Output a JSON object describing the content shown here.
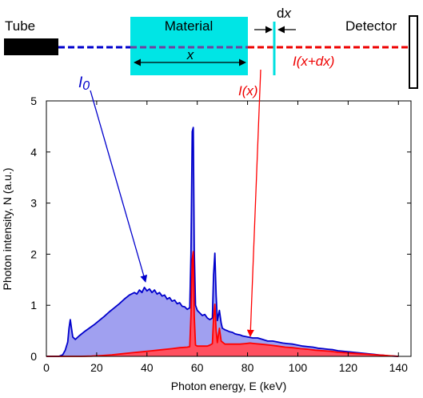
{
  "diagram": {
    "tube_label": "Tube",
    "material_label": "Material",
    "detector_label": "Detector",
    "thickness_label": "x",
    "dx_label_d": "d",
    "dx_label_x": "x",
    "i0_label_main": "I",
    "i0_label_sub": "0",
    "ix_label": "I(x)",
    "ixdx_label": "I(x+dx)"
  },
  "chart_data": {
    "type": "area",
    "xlabel": "Photon energy, E (keV)",
    "ylabel": "Photon intensity, N (a.u.)",
    "xlim": [
      0,
      145
    ],
    "ylim": [
      0,
      5
    ],
    "xticks": [
      0,
      20,
      40,
      60,
      80,
      100,
      120,
      140
    ],
    "yticks": [
      0,
      1,
      2,
      3,
      4,
      5
    ],
    "grid": false,
    "series": [
      {
        "name": "I0",
        "color": "#0000cc",
        "fill": "#a0a0f0",
        "points": [
          [
            0,
            0
          ],
          [
            5,
            0
          ],
          [
            6.5,
            0.03
          ],
          [
            7.5,
            0.12
          ],
          [
            8.5,
            0.28
          ],
          [
            9,
            0.55
          ],
          [
            9.5,
            0.72
          ],
          [
            10,
            0.55
          ],
          [
            10.5,
            0.38
          ],
          [
            11.5,
            0.33
          ],
          [
            13,
            0.4
          ],
          [
            15,
            0.48
          ],
          [
            17,
            0.55
          ],
          [
            19,
            0.62
          ],
          [
            21,
            0.7
          ],
          [
            23,
            0.78
          ],
          [
            25,
            0.87
          ],
          [
            27,
            0.95
          ],
          [
            29,
            1.03
          ],
          [
            31,
            1.12
          ],
          [
            33,
            1.2
          ],
          [
            35,
            1.25
          ],
          [
            36,
            1.22
          ],
          [
            37,
            1.3
          ],
          [
            38,
            1.25
          ],
          [
            39,
            1.35
          ],
          [
            40,
            1.28
          ],
          [
            41,
            1.32
          ],
          [
            42,
            1.25
          ],
          [
            43,
            1.3
          ],
          [
            44,
            1.22
          ],
          [
            45,
            1.25
          ],
          [
            46,
            1.18
          ],
          [
            47,
            1.2
          ],
          [
            48,
            1.12
          ],
          [
            49,
            1.15
          ],
          [
            50,
            1.08
          ],
          [
            51,
            1.1
          ],
          [
            52,
            1.03
          ],
          [
            53,
            1.05
          ],
          [
            54,
            0.98
          ],
          [
            55,
            0.97
          ],
          [
            56,
            0.92
          ],
          [
            57,
            0.95
          ],
          [
            57.5,
            2.0
          ],
          [
            58,
            4.4
          ],
          [
            58.4,
            4.48
          ],
          [
            58.8,
            2.1
          ],
          [
            59.3,
            1.0
          ],
          [
            60,
            0.9
          ],
          [
            61,
            0.85
          ],
          [
            62,
            0.8
          ],
          [
            63,
            0.82
          ],
          [
            64,
            0.75
          ],
          [
            65,
            0.72
          ],
          [
            66,
            0.75
          ],
          [
            66.5,
            1.6
          ],
          [
            67,
            2.02
          ],
          [
            67.5,
            1.2
          ],
          [
            68,
            0.7
          ],
          [
            68.8,
            0.9
          ],
          [
            69.5,
            0.65
          ],
          [
            70,
            0.55
          ],
          [
            71,
            0.52
          ],
          [
            72,
            0.5
          ],
          [
            73,
            0.48
          ],
          [
            74,
            0.47
          ],
          [
            75,
            0.44
          ],
          [
            76,
            0.43
          ],
          [
            77,
            0.42
          ],
          [
            78,
            0.4
          ],
          [
            79,
            0.39
          ],
          [
            80,
            0.38
          ],
          [
            82,
            0.36
          ],
          [
            84,
            0.36
          ],
          [
            86,
            0.33
          ],
          [
            88,
            0.3
          ],
          [
            90,
            0.3
          ],
          [
            92,
            0.28
          ],
          [
            94,
            0.26
          ],
          [
            96,
            0.25
          ],
          [
            98,
            0.24
          ],
          [
            100,
            0.22
          ],
          [
            102,
            0.2
          ],
          [
            104,
            0.19
          ],
          [
            106,
            0.18
          ],
          [
            108,
            0.16
          ],
          [
            110,
            0.15
          ],
          [
            112,
            0.14
          ],
          [
            114,
            0.13
          ],
          [
            116,
            0.11
          ],
          [
            118,
            0.1
          ],
          [
            120,
            0.09
          ],
          [
            122,
            0.08
          ],
          [
            124,
            0.07
          ],
          [
            126,
            0.06
          ],
          [
            128,
            0.05
          ],
          [
            130,
            0.04
          ],
          [
            132,
            0.03
          ],
          [
            134,
            0.02
          ],
          [
            136,
            0.01
          ],
          [
            138,
            0.005
          ],
          [
            140,
            0
          ]
        ]
      },
      {
        "name": "I(x)",
        "color": "#ff0000",
        "fill": "#ff5060",
        "points": [
          [
            0,
            0
          ],
          [
            14,
            0
          ],
          [
            18,
            0.005
          ],
          [
            22,
            0.015
          ],
          [
            26,
            0.03
          ],
          [
            30,
            0.05
          ],
          [
            34,
            0.07
          ],
          [
            38,
            0.09
          ],
          [
            42,
            0.11
          ],
          [
            46,
            0.13
          ],
          [
            50,
            0.15
          ],
          [
            53,
            0.17
          ],
          [
            56,
            0.18
          ],
          [
            57,
            0.19
          ],
          [
            57.5,
            0.8
          ],
          [
            58,
            1.9
          ],
          [
            58.4,
            2.05
          ],
          [
            58.8,
            0.8
          ],
          [
            59.3,
            0.22
          ],
          [
            60,
            0.2
          ],
          [
            62,
            0.2
          ],
          [
            64,
            0.2
          ],
          [
            65,
            0.22
          ],
          [
            66,
            0.25
          ],
          [
            66.5,
            0.75
          ],
          [
            67,
            1.02
          ],
          [
            67.5,
            0.5
          ],
          [
            68,
            0.27
          ],
          [
            68.8,
            0.55
          ],
          [
            69.5,
            0.3
          ],
          [
            71,
            0.24
          ],
          [
            73,
            0.24
          ],
          [
            75,
            0.24
          ],
          [
            77,
            0.24
          ],
          [
            79,
            0.25
          ],
          [
            81,
            0.26
          ],
          [
            83,
            0.25
          ],
          [
            85,
            0.24
          ],
          [
            87,
            0.23
          ],
          [
            89,
            0.22
          ],
          [
            92,
            0.2
          ],
          [
            95,
            0.18
          ],
          [
            98,
            0.17
          ],
          [
            101,
            0.15
          ],
          [
            104,
            0.14
          ],
          [
            107,
            0.12
          ],
          [
            110,
            0.11
          ],
          [
            113,
            0.1
          ],
          [
            116,
            0.08
          ],
          [
            119,
            0.07
          ],
          [
            122,
            0.06
          ],
          [
            125,
            0.05
          ],
          [
            128,
            0.04
          ],
          [
            131,
            0.03
          ],
          [
            134,
            0.02
          ],
          [
            137,
            0.01
          ],
          [
            140,
            0
          ]
        ]
      }
    ]
  }
}
